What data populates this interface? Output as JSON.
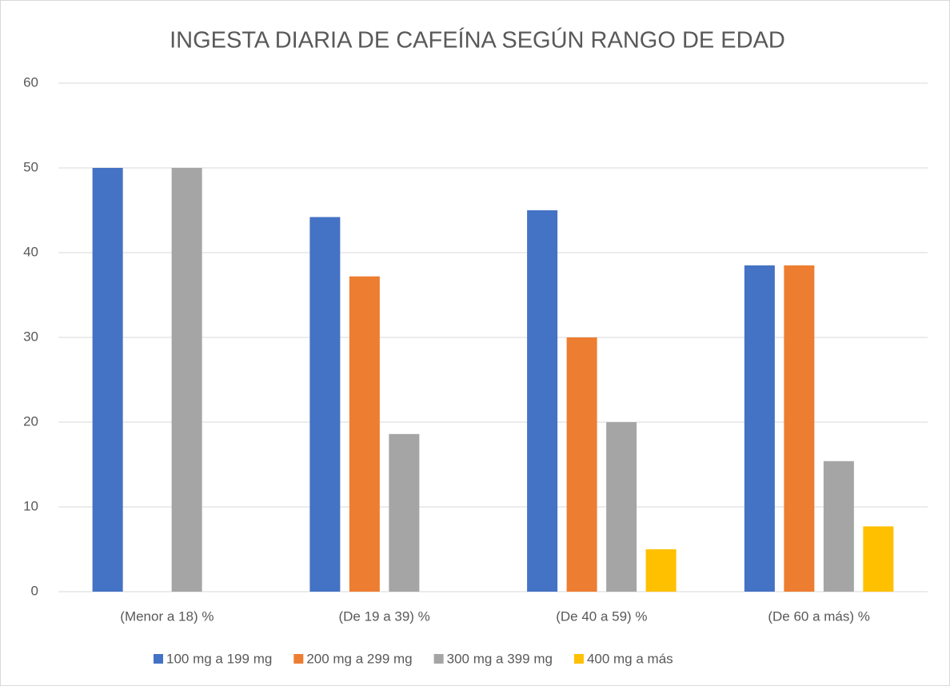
{
  "chart_data": {
    "type": "bar",
    "title": "INGESTA DIARIA DE CAFEÍNA SEGÚN RANGO DE EDAD",
    "categories": [
      "(Menor a 18) %",
      "(De 19 a 39) %",
      "(De 40 a 59) %",
      "(De 60 a más) %"
    ],
    "series": [
      {
        "name": "100 mg a 199 mg",
        "color": "#4472c4",
        "values": [
          50,
          44.2,
          45,
          38.5
        ]
      },
      {
        "name": "200 mg a 299 mg",
        "color": "#ed7d31",
        "values": [
          0,
          37.2,
          30,
          38.5
        ]
      },
      {
        "name": "300 mg a 399 mg",
        "color": "#a5a5a5",
        "values": [
          50,
          18.6,
          20,
          15.4
        ]
      },
      {
        "name": "400 mg a más",
        "color": "#ffc000",
        "values": [
          0,
          0,
          5,
          7.7
        ]
      }
    ],
    "ylim": [
      0,
      60
    ],
    "yticks": [
      0,
      10,
      20,
      30,
      40,
      50,
      60
    ],
    "grid": true,
    "legend": "bottom"
  }
}
